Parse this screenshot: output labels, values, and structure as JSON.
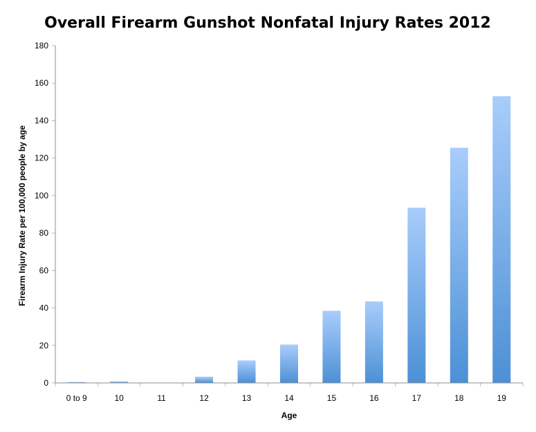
{
  "chart_data": {
    "type": "bar",
    "title": "Overall Firearm Gunshot Nonfatal Injury Rates 2012",
    "xlabel": "Age",
    "ylabel": "Firearm Injury Rate per 100,000 people by age",
    "categories": [
      "0 to 9",
      "10",
      "11",
      "12",
      "13",
      "14",
      "15",
      "16",
      "17",
      "18",
      "19"
    ],
    "values": [
      0.5,
      0.8,
      0,
      3.3,
      12,
      20.5,
      38.5,
      43.5,
      93.5,
      125.5,
      153
    ],
    "ylim": [
      0,
      180
    ],
    "yticks": [
      0,
      20,
      40,
      60,
      80,
      100,
      120,
      140,
      160,
      180
    ],
    "grid": false,
    "legend": "none",
    "colors": {
      "bar_top": "#a9cdfb",
      "bar_bottom": "#4c90d6",
      "axis": "#8c8c8c"
    }
  }
}
